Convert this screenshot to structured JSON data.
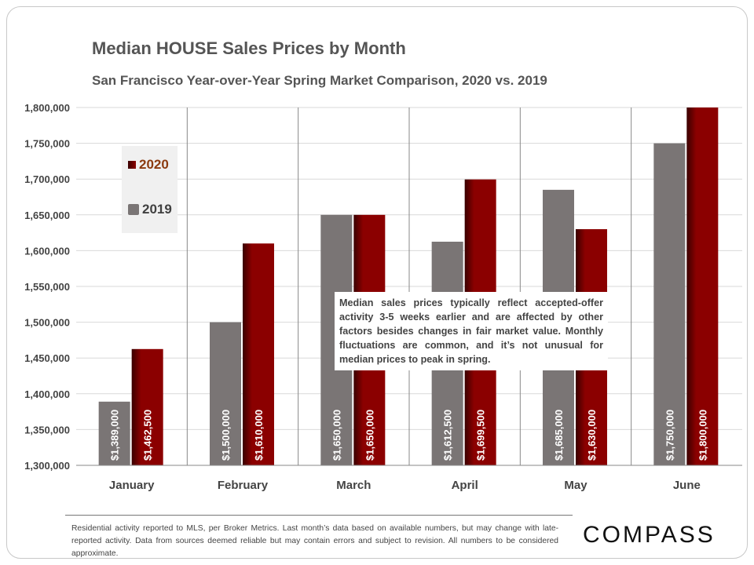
{
  "chart_data": {
    "type": "bar",
    "title": "Median HOUSE Sales Prices by Month",
    "subtitle": "San Francisco Year-over-Year Spring Market Comparison,  2020 vs. 2019",
    "categories": [
      "January",
      "February",
      "March",
      "April",
      "May",
      "June"
    ],
    "series": [
      {
        "name": "2019",
        "color": "#7a7575",
        "values": [
          1389000,
          1500000,
          1650000,
          1612500,
          1685000,
          1750000
        ],
        "labels": [
          "$1,389,000",
          "$1,500,000",
          "$1,650,000",
          "$1,612,500",
          "$1,685,000",
          "$1,750,000"
        ]
      },
      {
        "name": "2020",
        "color": "#8b0000",
        "values": [
          1462500,
          1610000,
          1650000,
          1699500,
          1630000,
          1800000
        ],
        "labels": [
          "$1,462,500",
          "$1,610,000",
          "$1,650,000",
          "$1,699,500",
          "$1,630,000",
          "$1,800,000"
        ]
      }
    ],
    "ylim": [
      1300000,
      1800000
    ],
    "yticks": [
      "1,300,000",
      "1,350,000",
      "1,400,000",
      "1,450,000",
      "1,500,000",
      "1,550,000",
      "1,600,000",
      "1,650,000",
      "1,700,000",
      "1,750,000",
      "1,800,000"
    ],
    "grid": true,
    "legend_placement": "top-left",
    "legend_text_colors": {
      "2020": "#8b3a0f",
      "2019": "#404040"
    },
    "annotation": "Median sales prices typically reflect accepted-offer activity 3-5 weeks earlier and are affected by other factors besides changes in fair market value. Monthly fluctuations are common, and it’s not unusual for median prices to peak in spring."
  },
  "footer": "Residential activity reported to MLS, per Broker Metrics. Last month’s data based on available numbers, but may change with late-reported activity. Data from sources deemed reliable but may contain errors and subject to revision. All numbers to be considered approximate.",
  "logo": "COMPASS"
}
